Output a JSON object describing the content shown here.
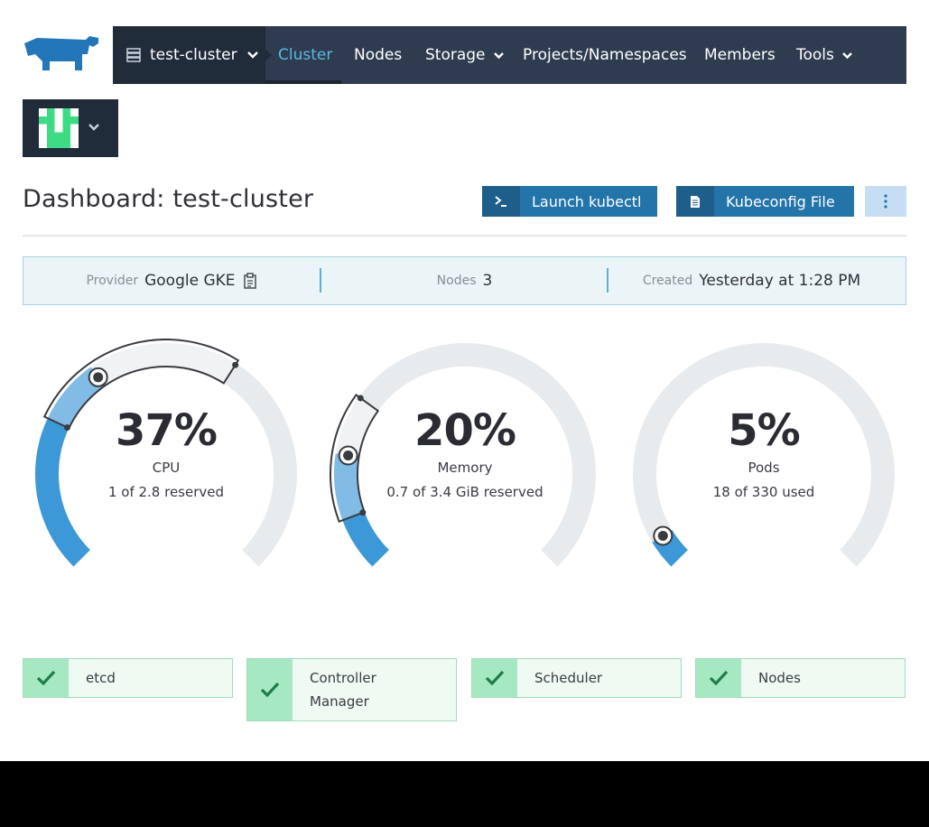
{
  "nav": {
    "cluster_name": "test-cluster",
    "items": [
      "Cluster",
      "Nodes",
      "Storage",
      "Projects/Namespaces",
      "Members",
      "Tools"
    ],
    "active": "Cluster"
  },
  "header": {
    "title": "Dashboard: test-cluster",
    "launch_kubectl": "Launch kubectl",
    "kubeconfig": "Kubeconfig File"
  },
  "info": {
    "provider_label": "Provider",
    "provider_value": "Google GKE",
    "nodes_label": "Nodes",
    "nodes_value": "3",
    "created_label": "Created",
    "created_value": "Yesterday at 1:28 PM"
  },
  "gauges": [
    {
      "pct": "37%",
      "name": "CPU",
      "sub": "1 of 2.8 reserved",
      "used_fraction": 0.37,
      "reserved_fraction": 0.36
    },
    {
      "pct": "20%",
      "name": "Memory",
      "sub": "0.7 of 3.4 GiB reserved",
      "used_fraction": 0.2,
      "reserved_fraction": 0.21
    },
    {
      "pct": "5%",
      "name": "Pods",
      "sub": "18 of 330 used",
      "used_fraction": 0.05,
      "reserved_fraction": 0.0
    }
  ],
  "components": [
    {
      "label": "etcd",
      "status": "healthy"
    },
    {
      "label": "Controller Manager",
      "status": "healthy"
    },
    {
      "label": "Scheduler",
      "status": "healthy"
    },
    {
      "label": "Nodes",
      "status": "healthy"
    }
  ],
  "colors": {
    "nav_bg": "#2f3c4f",
    "accent": "#2374a9",
    "gauge_used": "#3d98d8",
    "gauge_track": "#e8ebed",
    "healthy": "#a5e8c1"
  }
}
